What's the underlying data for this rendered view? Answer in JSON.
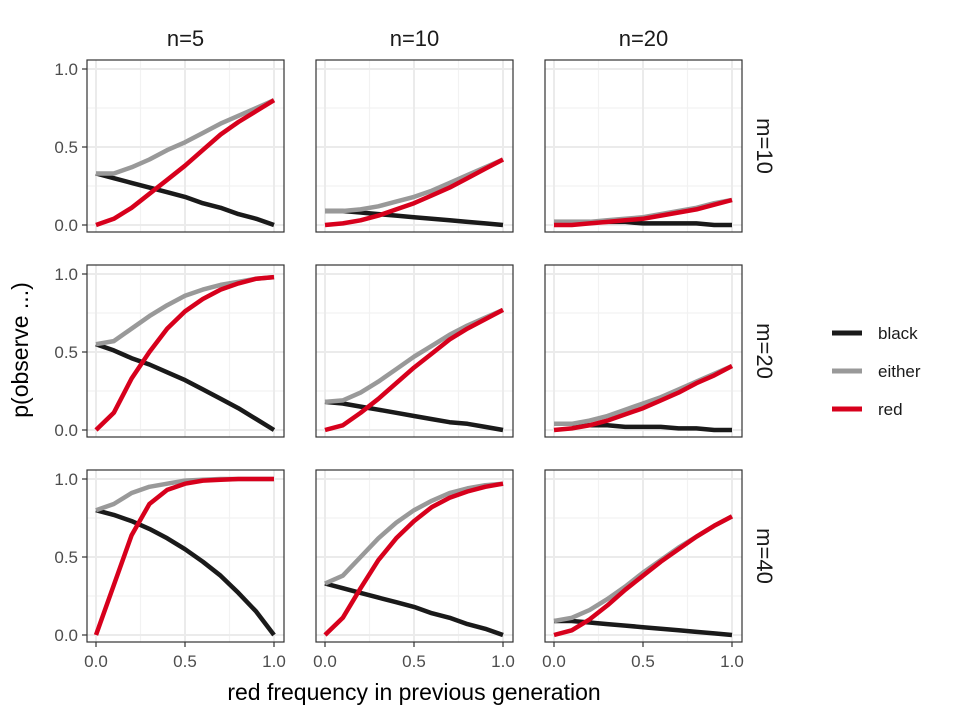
{
  "chart_data": {
    "type": "line",
    "xlabel": "red frequency in previous generation",
    "ylabel": "p(observe ...)",
    "xlim": [
      0,
      1
    ],
    "ylim": [
      0,
      1
    ],
    "x_ticks": [
      "0.0",
      "0.5",
      "1.0"
    ],
    "y_ticks": [
      "0.0",
      "0.5",
      "1.0"
    ],
    "grid": true,
    "legend_position": "right",
    "column_labels": [
      "n=5",
      "n=10",
      "n=20"
    ],
    "row_labels": [
      "m=10",
      "m=20",
      "m=40"
    ],
    "legend": [
      {
        "name": "black",
        "color": "#1a1a1a"
      },
      {
        "name": "either",
        "color": "#999999"
      },
      {
        "name": "red",
        "color": "#d7001c"
      }
    ],
    "x": [
      0,
      0.1,
      0.2,
      0.3,
      0.4,
      0.5,
      0.6,
      0.7,
      0.8,
      0.9,
      1.0
    ],
    "panels": [
      {
        "col": "n=5",
        "row": "m=10",
        "series": [
          {
            "name": "black",
            "values": [
              0.33,
              0.3,
              0.27,
              0.24,
              0.21,
              0.18,
              0.14,
              0.11,
              0.07,
              0.04,
              0.0
            ]
          },
          {
            "name": "either",
            "values": [
              0.33,
              0.33,
              0.37,
              0.42,
              0.48,
              0.53,
              0.59,
              0.65,
              0.7,
              0.75,
              0.8
            ]
          },
          {
            "name": "red",
            "values": [
              0.0,
              0.04,
              0.11,
              0.2,
              0.29,
              0.38,
              0.48,
              0.58,
              0.66,
              0.73,
              0.8
            ]
          }
        ]
      },
      {
        "col": "n=10",
        "row": "m=10",
        "series": [
          {
            "name": "black",
            "values": [
              0.09,
              0.09,
              0.08,
              0.07,
              0.06,
              0.05,
              0.04,
              0.03,
              0.02,
              0.01,
              0.0
            ]
          },
          {
            "name": "either",
            "values": [
              0.09,
              0.09,
              0.1,
              0.12,
              0.15,
              0.18,
              0.22,
              0.27,
              0.32,
              0.37,
              0.42
            ]
          },
          {
            "name": "red",
            "values": [
              0.0,
              0.01,
              0.03,
              0.06,
              0.1,
              0.14,
              0.19,
              0.24,
              0.3,
              0.36,
              0.42
            ]
          }
        ]
      },
      {
        "col": "n=20",
        "row": "m=10",
        "series": [
          {
            "name": "black",
            "values": [
              0.02,
              0.02,
              0.02,
              0.02,
              0.02,
              0.01,
              0.01,
              0.01,
              0.01,
              0.0,
              0.0
            ]
          },
          {
            "name": "either",
            "values": [
              0.02,
              0.02,
              0.02,
              0.03,
              0.04,
              0.05,
              0.07,
              0.09,
              0.11,
              0.14,
              0.16
            ]
          },
          {
            "name": "red",
            "values": [
              0.0,
              0.0,
              0.01,
              0.02,
              0.03,
              0.04,
              0.06,
              0.08,
              0.1,
              0.13,
              0.16
            ]
          }
        ]
      },
      {
        "col": "n=5",
        "row": "m=20",
        "series": [
          {
            "name": "black",
            "values": [
              0.55,
              0.51,
              0.46,
              0.42,
              0.37,
              0.32,
              0.26,
              0.2,
              0.14,
              0.07,
              0.0
            ]
          },
          {
            "name": "either",
            "values": [
              0.55,
              0.57,
              0.65,
              0.73,
              0.8,
              0.86,
              0.9,
              0.93,
              0.95,
              0.97,
              0.98
            ]
          },
          {
            "name": "red",
            "values": [
              0.0,
              0.11,
              0.33,
              0.5,
              0.65,
              0.76,
              0.84,
              0.9,
              0.94,
              0.97,
              0.98
            ]
          }
        ]
      },
      {
        "col": "n=10",
        "row": "m=20",
        "series": [
          {
            "name": "black",
            "values": [
              0.18,
              0.17,
              0.15,
              0.13,
              0.11,
              0.09,
              0.07,
              0.05,
              0.04,
              0.02,
              0.0
            ]
          },
          {
            "name": "either",
            "values": [
              0.18,
              0.19,
              0.24,
              0.31,
              0.39,
              0.47,
              0.54,
              0.61,
              0.67,
              0.72,
              0.77
            ]
          },
          {
            "name": "red",
            "values": [
              0.0,
              0.03,
              0.11,
              0.2,
              0.3,
              0.4,
              0.49,
              0.58,
              0.65,
              0.71,
              0.77
            ]
          }
        ]
      },
      {
        "col": "n=20",
        "row": "m=20",
        "series": [
          {
            "name": "black",
            "values": [
              0.04,
              0.04,
              0.03,
              0.03,
              0.02,
              0.02,
              0.02,
              0.01,
              0.01,
              0.0,
              0.0
            ]
          },
          {
            "name": "either",
            "values": [
              0.04,
              0.04,
              0.06,
              0.09,
              0.13,
              0.17,
              0.21,
              0.26,
              0.31,
              0.36,
              0.41
            ]
          },
          {
            "name": "red",
            "values": [
              0.0,
              0.01,
              0.03,
              0.06,
              0.1,
              0.14,
              0.19,
              0.24,
              0.3,
              0.35,
              0.41
            ]
          }
        ]
      },
      {
        "col": "n=5",
        "row": "m=40",
        "series": [
          {
            "name": "black",
            "values": [
              0.8,
              0.77,
              0.73,
              0.68,
              0.62,
              0.55,
              0.47,
              0.38,
              0.27,
              0.15,
              0.0
            ]
          },
          {
            "name": "either",
            "values": [
              0.8,
              0.84,
              0.91,
              0.95,
              0.97,
              0.99,
              0.995,
              1.0,
              1.0,
              1.0,
              1.0
            ]
          },
          {
            "name": "red",
            "values": [
              0.0,
              0.32,
              0.64,
              0.84,
              0.93,
              0.97,
              0.99,
              0.995,
              1.0,
              1.0,
              1.0
            ]
          }
        ]
      },
      {
        "col": "n=10",
        "row": "m=40",
        "series": [
          {
            "name": "black",
            "values": [
              0.33,
              0.3,
              0.27,
              0.24,
              0.21,
              0.18,
              0.14,
              0.11,
              0.07,
              0.04,
              0.0
            ]
          },
          {
            "name": "either",
            "values": [
              0.33,
              0.38,
              0.5,
              0.62,
              0.72,
              0.8,
              0.86,
              0.91,
              0.94,
              0.96,
              0.97
            ]
          },
          {
            "name": "red",
            "values": [
              0.0,
              0.11,
              0.3,
              0.48,
              0.62,
              0.73,
              0.82,
              0.88,
              0.92,
              0.95,
              0.97
            ]
          }
        ]
      },
      {
        "col": "n=20",
        "row": "m=40",
        "series": [
          {
            "name": "black",
            "values": [
              0.09,
              0.09,
              0.08,
              0.07,
              0.06,
              0.05,
              0.04,
              0.03,
              0.02,
              0.01,
              0.0
            ]
          },
          {
            "name": "either",
            "values": [
              0.09,
              0.11,
              0.16,
              0.23,
              0.31,
              0.4,
              0.48,
              0.56,
              0.63,
              0.7,
              0.76
            ]
          },
          {
            "name": "red",
            "values": [
              0.0,
              0.03,
              0.1,
              0.19,
              0.29,
              0.38,
              0.47,
              0.55,
              0.63,
              0.7,
              0.76
            ]
          }
        ]
      }
    ]
  }
}
